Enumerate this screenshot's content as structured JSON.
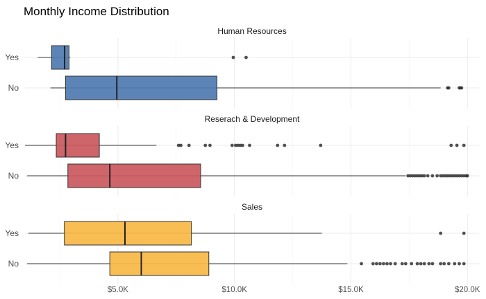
{
  "chart_data": {
    "type": "boxplot",
    "title": "Monthly Income Distribution",
    "xlabel": "",
    "ylabel": "",
    "xlim": [
      1009,
      20500
    ],
    "x_ticks": [
      5000,
      10000,
      15000,
      20000
    ],
    "x_tick_labels": [
      "$5.0K",
      "$10.0K",
      "$15.0K",
      "$20.0K"
    ],
    "grid": true,
    "legend": "none",
    "facets": [
      {
        "label": "Human Resources",
        "color": "#4E79B0",
        "rows": [
          {
            "category": "Yes",
            "whisker_low": 1555,
            "q1": 2150,
            "median": 2710,
            "q3": 2900,
            "whisker_high": 2950,
            "outliers": [
              9950,
              10500
            ]
          },
          {
            "category": "No",
            "whisker_low": 2100,
            "q1": 2750,
            "median": 4950,
            "q3": 9250,
            "whisker_high": 18850,
            "outliers": [
              19150,
              19200,
              19650,
              19700,
              19750
            ]
          }
        ]
      },
      {
        "label": "Reserach & Development",
        "color": "#C9585E",
        "rows": [
          {
            "category": "Yes",
            "whisker_low": 1009,
            "q1": 2350,
            "median": 2750,
            "q3": 4200,
            "whisker_high": 6650,
            "outliers": [
              7600,
              7700,
              8050,
              8750,
              8950,
              9900,
              10050,
              10150,
              10250,
              10350,
              10650,
              11850,
              12150,
              13700,
              19300,
              19550,
              19850
            ]
          },
          {
            "category": "No",
            "whisker_low": 1100,
            "q1": 2850,
            "median": 4650,
            "q3": 8550,
            "whisker_high": 17350,
            "outliers": [
              17450,
              17550,
              17650,
              17750,
              17850,
              17950,
              18050,
              18150,
              18300,
              18500,
              18700,
              18850,
              18950,
              19050,
              19150,
              19250,
              19350,
              19450,
              19550,
              19650,
              19750,
              19850,
              19950,
              20000
            ]
          }
        ]
      },
      {
        "label": "Sales",
        "color": "#F9B944",
        "rows": [
          {
            "category": "Yes",
            "whisker_low": 1150,
            "q1": 2700,
            "median": 5300,
            "q3": 8150,
            "whisker_high": 13750,
            "outliers": [
              18850,
              19850
            ]
          },
          {
            "category": "No",
            "whisker_low": 1100,
            "q1": 4650,
            "median": 6000,
            "q3": 8900,
            "whisker_high": 14850,
            "outliers": [
              15450,
              15950,
              16100,
              16250,
              16400,
              16550,
              16700,
              16900,
              17200,
              17350,
              17600,
              17850,
              18000,
              18150,
              18350,
              18500,
              18850,
              19000,
              19200,
              19450,
              19650,
              19850
            ]
          }
        ]
      }
    ]
  }
}
